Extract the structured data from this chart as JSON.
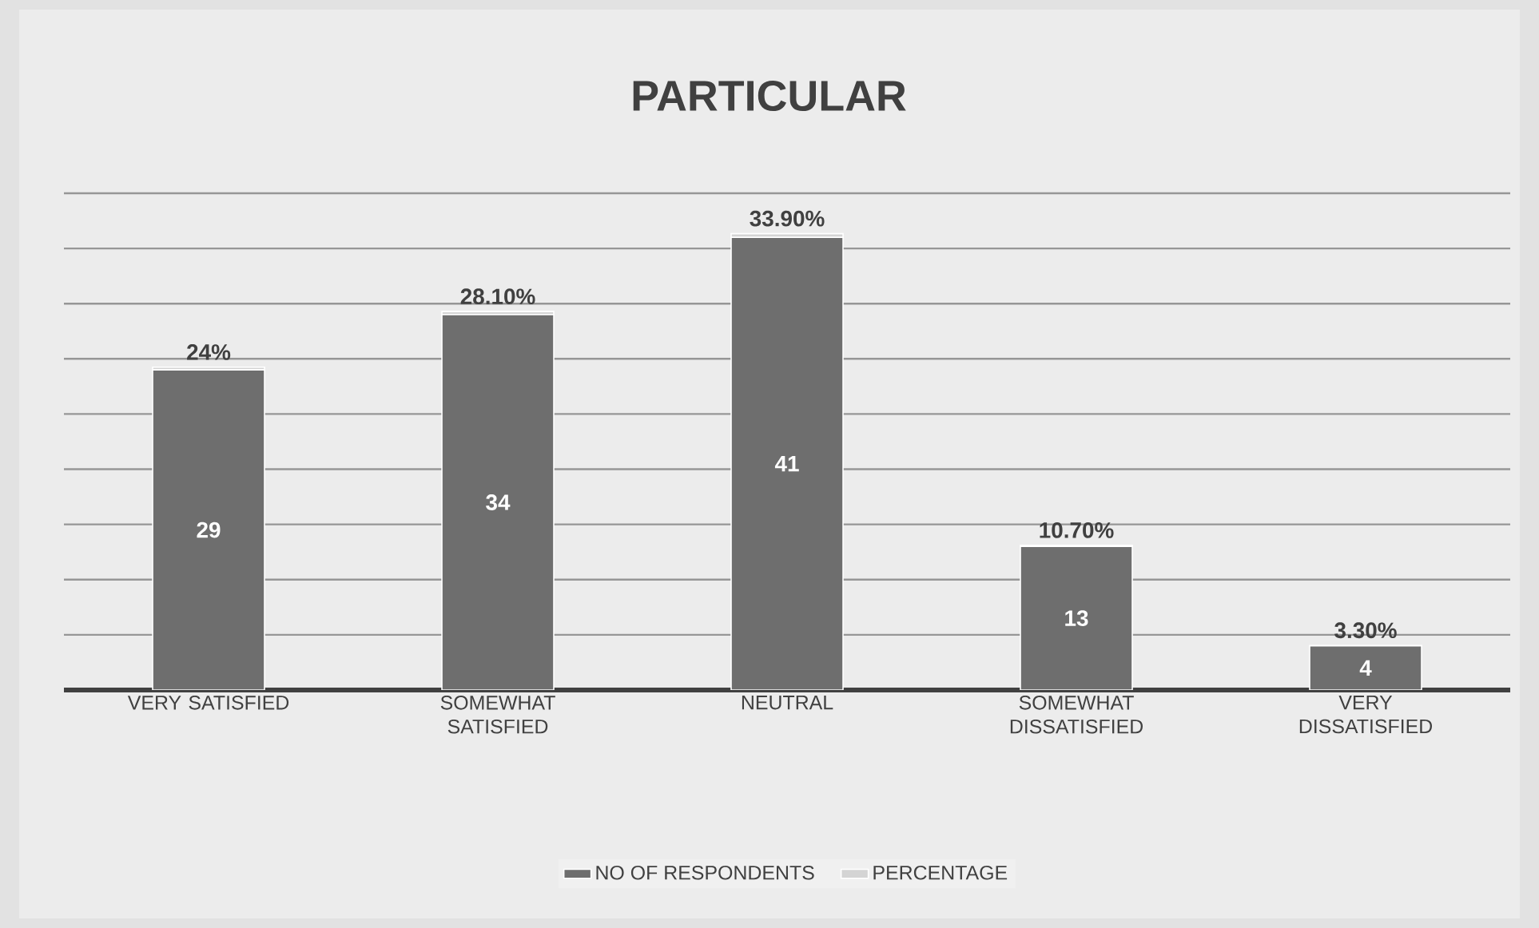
{
  "chart_data": {
    "type": "bar",
    "stacked": true,
    "title": "PARTICULAR",
    "categories": [
      "VERY SATISFIED",
      "SOMEWHAT SATISFIED",
      "NEUTRAL",
      "SOMEWHAT DISSATISFIED",
      "VERY DISSATISFIED"
    ],
    "series": [
      {
        "name": "NO OF RESPONDENTS",
        "color": "#6e6e6e",
        "values": [
          29,
          34,
          41,
          13,
          4
        ],
        "value_labels": [
          "29",
          "34",
          "41",
          "13",
          "4"
        ]
      },
      {
        "name": "PERCENTAGE",
        "color": "#d4d4d4",
        "values": [
          0.24,
          0.281,
          0.339,
          0.107,
          0.033
        ],
        "value_labels": [
          "24%",
          "28.10%",
          "33.90%",
          "10.70%",
          "3.30%"
        ]
      }
    ],
    "ylim": [
      0,
      45
    ],
    "yticks": [
      {
        "value": 0,
        "label": null
      },
      {
        "value": 5,
        "label": null
      },
      {
        "value": 10,
        "label": null
      },
      {
        "value": 15,
        "label": null
      },
      {
        "value": 20,
        "label": null
      },
      {
        "value": 25,
        "label": null
      },
      {
        "value": 30,
        "label": null
      },
      {
        "value": 35,
        "label": null
      },
      {
        "value": 40,
        "label": null
      },
      {
        "value": 45,
        "label": null
      }
    ],
    "tick_labels": "x",
    "grid": "y",
    "legend": "bottom"
  }
}
